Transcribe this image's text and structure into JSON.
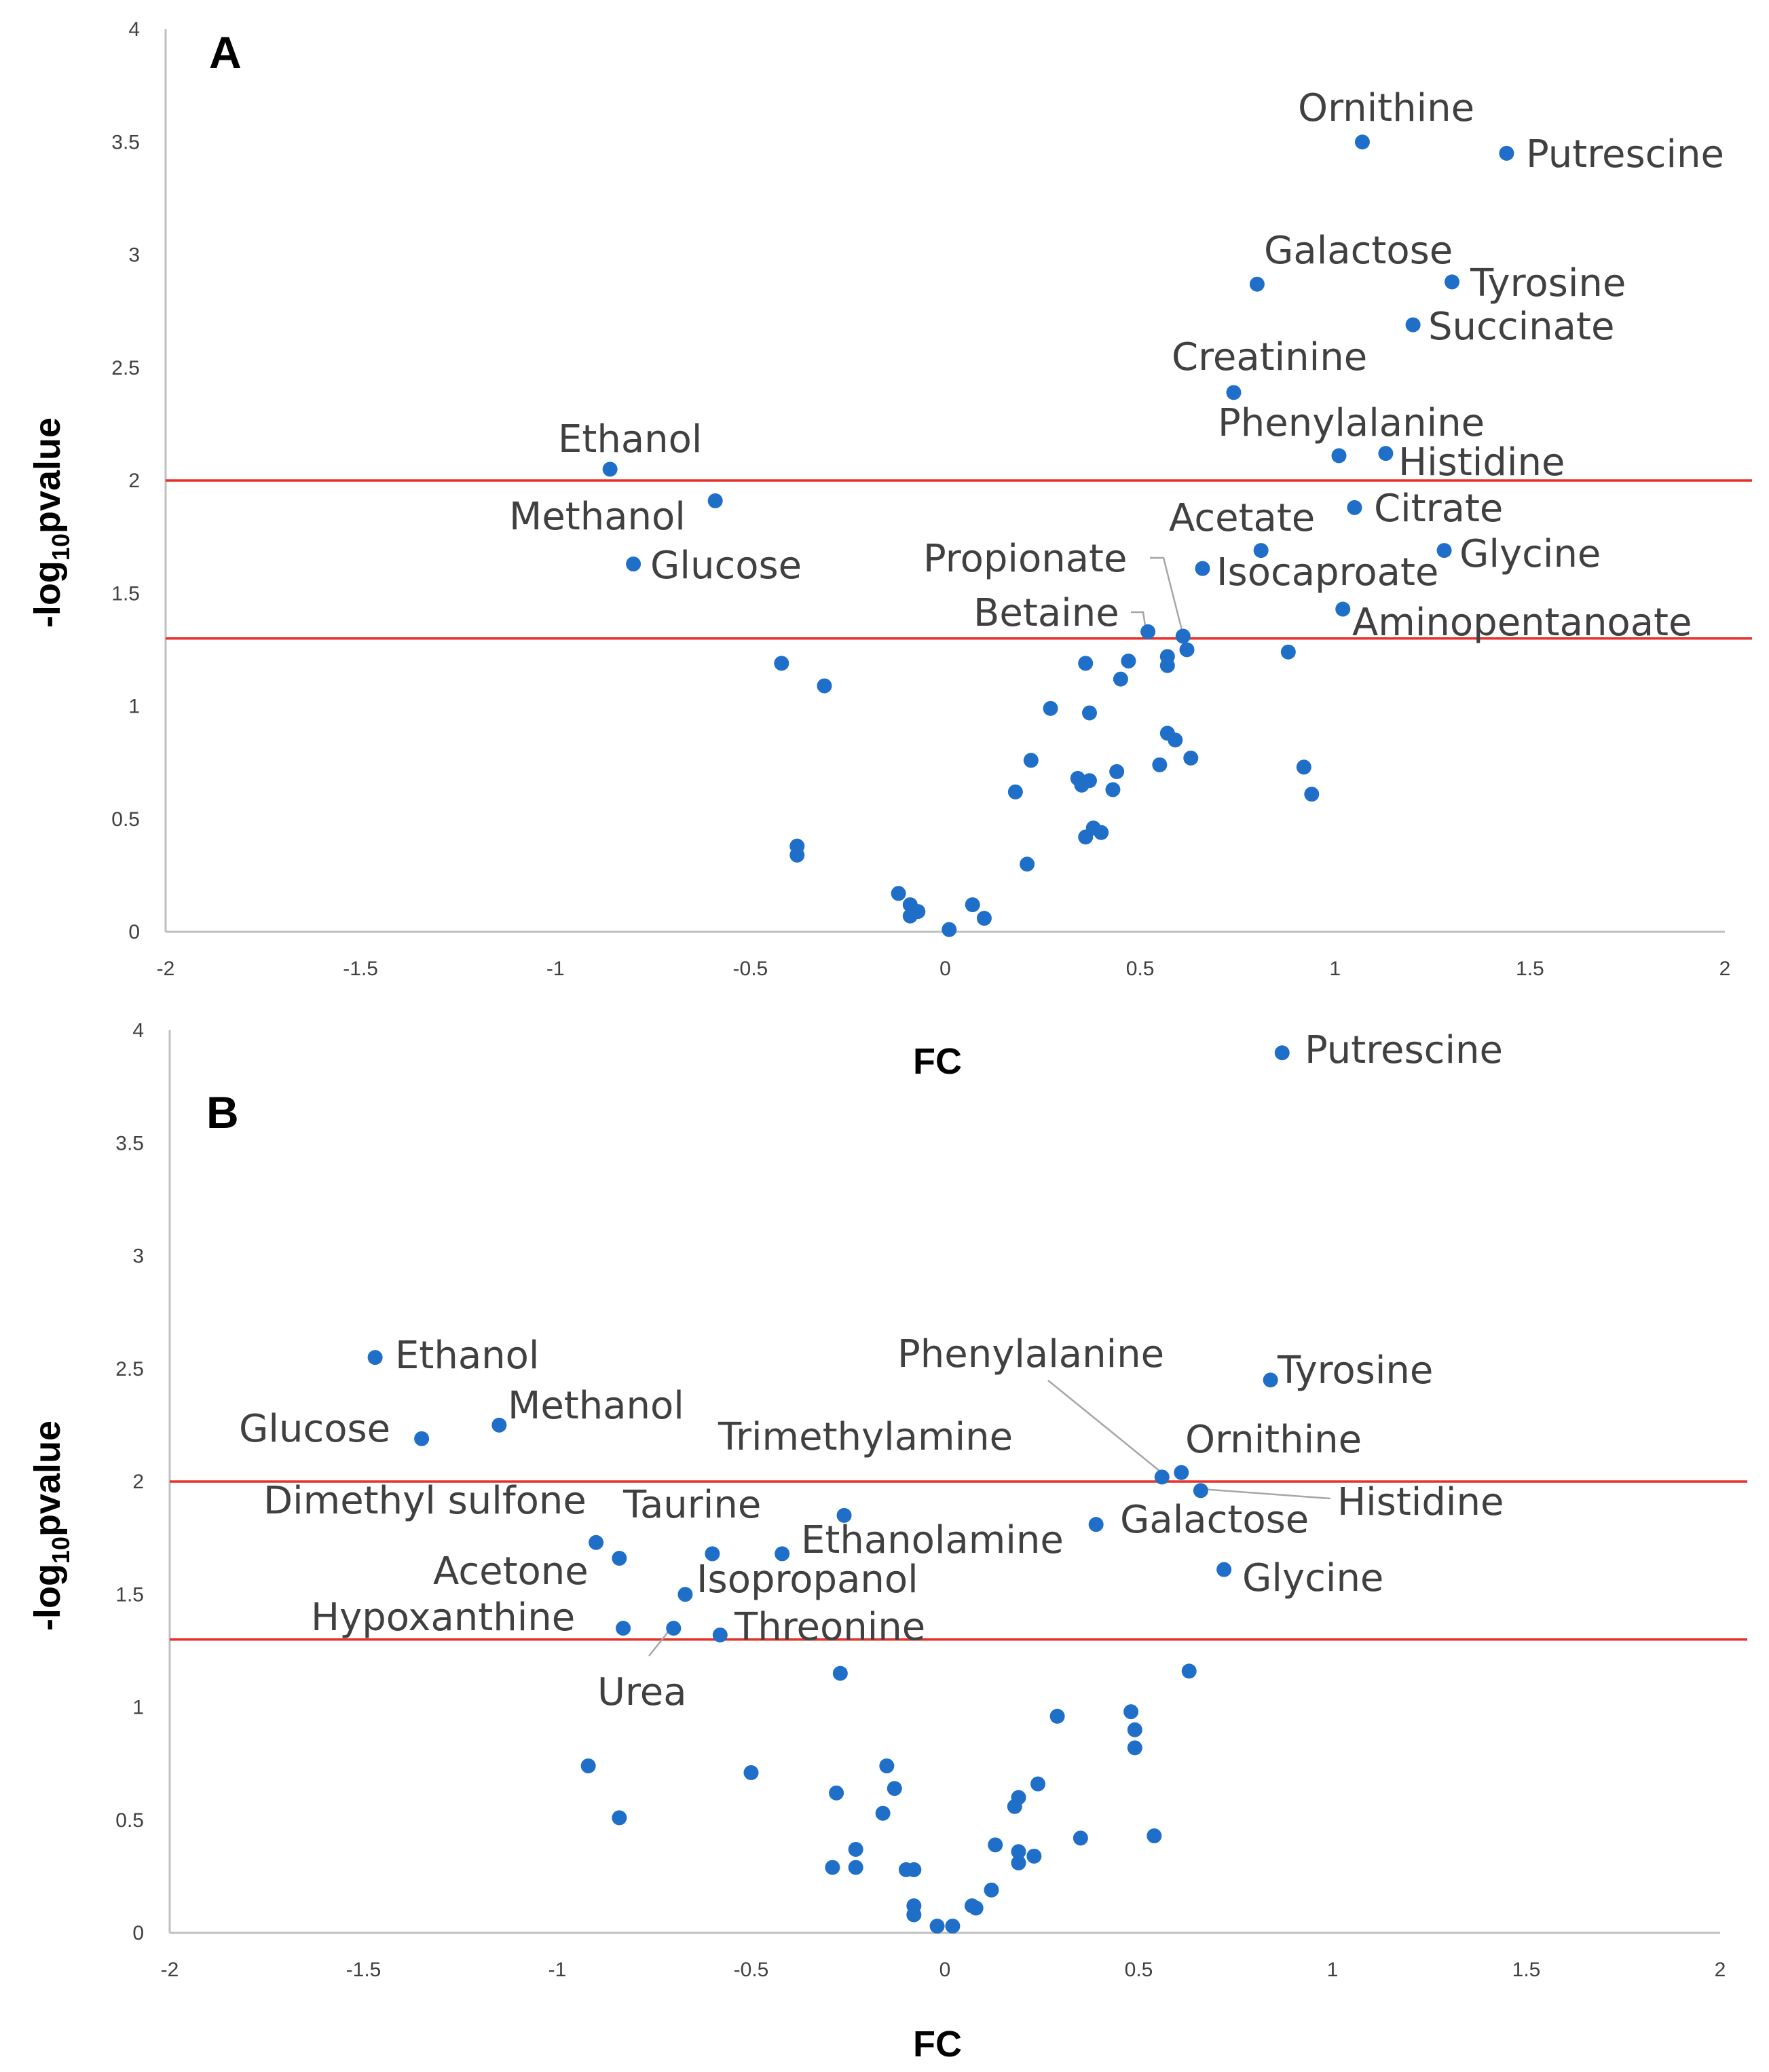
{
  "colors": {
    "point": "#1f6fc9",
    "threshold": "#e8302a",
    "axis": "#bfbfbf",
    "leader": "#a6a6a6"
  },
  "chart_data": [
    {
      "type": "scatter",
      "panel": "A",
      "xlabel": "FC",
      "ylabel": "-log",
      "ylabel_sub": "10",
      "ylabel_suffix": "pvalue",
      "xlim": [
        -2,
        2
      ],
      "ylim": [
        0,
        4
      ],
      "xticks": [
        "-2",
        "-1.5",
        "-1",
        "-0.5",
        "0",
        "0.5",
        "1",
        "1.5",
        "2"
      ],
      "yticks": [
        "0",
        "0.5",
        "1",
        "1.5",
        "2",
        "2.5",
        "3",
        "3.5",
        "4"
      ],
      "thresholds": [
        2.0,
        1.3
      ],
      "labeled_points": [
        {
          "name": "Ornithine",
          "x": 1.07,
          "y": 3.5
        },
        {
          "name": "Putrescine",
          "x": 1.44,
          "y": 3.45
        },
        {
          "name": "Galactose",
          "x": 0.8,
          "y": 2.87
        },
        {
          "name": "Tyrosine",
          "x": 1.3,
          "y": 2.88
        },
        {
          "name": "Succinate",
          "x": 1.2,
          "y": 2.69
        },
        {
          "name": "Creatinine",
          "x": 0.74,
          "y": 2.39
        },
        {
          "name": "Phenylalanine",
          "x": 1.01,
          "y": 2.11
        },
        {
          "name": "Histidine",
          "x": 1.13,
          "y": 2.12
        },
        {
          "name": "Ethanol",
          "x": -0.86,
          "y": 2.05
        },
        {
          "name": "Methanol",
          "x": -0.59,
          "y": 1.91
        },
        {
          "name": "Citrate",
          "x": 1.05,
          "y": 1.88
        },
        {
          "name": "Acetate",
          "x": 0.81,
          "y": 1.69
        },
        {
          "name": "Glycine",
          "x": 1.28,
          "y": 1.69
        },
        {
          "name": "Glucose",
          "x": -0.8,
          "y": 1.63
        },
        {
          "name": "Isocaproate",
          "x": 0.66,
          "y": 1.61
        },
        {
          "name": "Propionate",
          "x": 0.61,
          "y": 1.31
        },
        {
          "name": "Betaine",
          "x": 0.52,
          "y": 1.33
        },
        {
          "name": "Aminopentanoate",
          "x": 1.02,
          "y": 1.43
        }
      ],
      "other_points": [
        [
          0.62,
          1.25
        ],
        [
          0.88,
          1.24
        ],
        [
          -0.42,
          1.19
        ],
        [
          0.36,
          1.19
        ],
        [
          0.47,
          1.2
        ],
        [
          0.57,
          1.22
        ],
        [
          0.57,
          1.18
        ],
        [
          -0.31,
          1.09
        ],
        [
          0.45,
          1.12
        ],
        [
          0.27,
          0.99
        ],
        [
          0.37,
          0.97
        ],
        [
          0.57,
          0.88
        ],
        [
          0.59,
          0.85
        ],
        [
          0.22,
          0.76
        ],
        [
          0.63,
          0.77
        ],
        [
          0.55,
          0.74
        ],
        [
          0.92,
          0.73
        ],
        [
          0.44,
          0.71
        ],
        [
          0.34,
          0.68
        ],
        [
          0.37,
          0.67
        ],
        [
          0.35,
          0.65
        ],
        [
          0.43,
          0.63
        ],
        [
          0.18,
          0.62
        ],
        [
          0.94,
          0.61
        ],
        [
          0.38,
          0.46
        ],
        [
          0.4,
          0.44
        ],
        [
          0.36,
          0.42
        ],
        [
          -0.38,
          0.38
        ],
        [
          -0.38,
          0.34
        ],
        [
          0.21,
          0.3
        ],
        [
          -0.12,
          0.17
        ],
        [
          -0.09,
          0.12
        ],
        [
          0.07,
          0.12
        ],
        [
          -0.07,
          0.09
        ],
        [
          -0.09,
          0.07
        ],
        [
          0.1,
          0.06
        ],
        [
          0.01,
          0.01
        ]
      ]
    },
    {
      "type": "scatter",
      "panel": "B",
      "xlabel": "FC",
      "ylabel": "-log",
      "ylabel_sub": "10",
      "ylabel_suffix": "pvalue",
      "xlim": [
        -2,
        2
      ],
      "ylim": [
        0,
        4
      ],
      "xticks": [
        "-2",
        "-1.5",
        "-1",
        "-0.5",
        "0",
        "0.5",
        "1",
        "1.5",
        "2"
      ],
      "yticks": [
        "0",
        "0.5",
        "1",
        "1.5",
        "2",
        "2.5",
        "3",
        "3.5",
        "4"
      ],
      "thresholds": [
        2.0,
        1.3
      ],
      "labeled_points": [
        {
          "name": "Putrescine",
          "x": 0.87,
          "y": 3.9
        },
        {
          "name": "Ethanol",
          "x": -1.47,
          "y": 2.55
        },
        {
          "name": "Tyrosine",
          "x": 0.84,
          "y": 2.45
        },
        {
          "name": "Methanol",
          "x": -1.15,
          "y": 2.25
        },
        {
          "name": "Glucose",
          "x": -1.35,
          "y": 2.19
        },
        {
          "name": "Phenylalanine",
          "x": 0.56,
          "y": 2.02
        },
        {
          "name": "Ornithine",
          "x": 0.61,
          "y": 2.04
        },
        {
          "name": "Histidine",
          "x": 0.66,
          "y": 1.96
        },
        {
          "name": "Trimethylamine",
          "x": -0.26,
          "y": 1.85
        },
        {
          "name": "Galactose",
          "x": 0.39,
          "y": 1.81
        },
        {
          "name": "Dimethyl sulfone",
          "x": -0.9,
          "y": 1.73
        },
        {
          "name": "Taurine",
          "x": -0.6,
          "y": 1.68
        },
        {
          "name": "Ethanolamine",
          "x": -0.42,
          "y": 1.68
        },
        {
          "name": "Acetone",
          "x": -0.84,
          "y": 1.66
        },
        {
          "name": "Glycine",
          "x": 0.72,
          "y": 1.61
        },
        {
          "name": "Isopropanol",
          "x": -0.67,
          "y": 1.5
        },
        {
          "name": "Hypoxanthine",
          "x": -0.83,
          "y": 1.35
        },
        {
          "name": "Urea",
          "x": -0.7,
          "y": 1.35
        },
        {
          "name": "Threonine",
          "x": -0.58,
          "y": 1.32
        }
      ],
      "other_points": [
        [
          0.63,
          1.16
        ],
        [
          -0.27,
          1.15
        ],
        [
          0.48,
          0.98
        ],
        [
          0.29,
          0.96
        ],
        [
          0.49,
          0.9
        ],
        [
          0.49,
          0.82
        ],
        [
          -0.92,
          0.74
        ],
        [
          -0.15,
          0.74
        ],
        [
          -0.5,
          0.71
        ],
        [
          0.24,
          0.66
        ],
        [
          -0.13,
          0.64
        ],
        [
          -0.28,
          0.62
        ],
        [
          0.19,
          0.6
        ],
        [
          0.18,
          0.56
        ],
        [
          -0.16,
          0.53
        ],
        [
          -0.84,
          0.51
        ],
        [
          0.54,
          0.43
        ],
        [
          0.35,
          0.42
        ],
        [
          0.13,
          0.39
        ],
        [
          -0.23,
          0.37
        ],
        [
          0.19,
          0.36
        ],
        [
          0.23,
          0.34
        ],
        [
          0.19,
          0.31
        ],
        [
          -0.29,
          0.29
        ],
        [
          -0.23,
          0.29
        ],
        [
          -0.1,
          0.28
        ],
        [
          -0.08,
          0.28
        ],
        [
          0.12,
          0.19
        ],
        [
          -0.08,
          0.12
        ],
        [
          0.07,
          0.12
        ],
        [
          0.08,
          0.11
        ],
        [
          -0.08,
          0.08
        ],
        [
          -0.02,
          0.03
        ],
        [
          0.02,
          0.03
        ]
      ]
    }
  ]
}
